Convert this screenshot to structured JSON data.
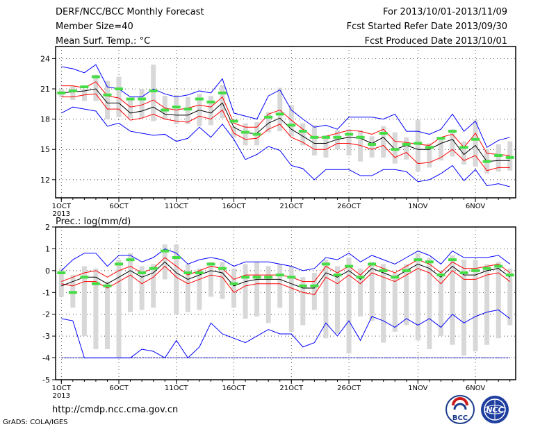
{
  "header": {
    "left": [
      "DERF/NCC/BCC Monthly Forecast",
      "Member Size=40",
      "Mean Surf. Temp.: °C"
    ],
    "right": [
      "For 2013/10/01-2013/11/09",
      "Fcst Started Refer Date 2013/09/30",
      "Fcst Produced Date 2013/10/01"
    ]
  },
  "footer": {
    "url": "http://cmdp.ncc.cma.gov.cn",
    "grads": "GrADS: COLA/IGES"
  },
  "logos": {
    "bcc": "BCC",
    "ncc": "NCC"
  },
  "colors": {
    "envelope": "#0000ff",
    "spread": "#ff0000",
    "mean": "#000000",
    "box": "#d8d8d8",
    "marker": "#44dd44"
  },
  "chart_data": [
    {
      "type": "line",
      "ylabel": "",
      "ylim": [
        10.2,
        25.2
      ],
      "yticks": [
        12,
        15,
        18,
        21,
        24
      ],
      "x_ticks": [
        "1OCT",
        "6OCT",
        "11OCT",
        "16OCT",
        "21OCT",
        "26OCT",
        "1NOV",
        "6NOV"
      ],
      "x_tick_days": [
        1,
        6,
        11,
        16,
        21,
        26,
        32,
        37
      ],
      "x_year_label": "2013",
      "grid": true,
      "days": [
        1,
        2,
        3,
        4,
        5,
        6,
        7,
        8,
        9,
        10,
        11,
        12,
        13,
        14,
        15,
        16,
        17,
        18,
        19,
        20,
        21,
        22,
        23,
        24,
        25,
        26,
        27,
        28,
        29,
        30,
        31,
        32,
        33,
        34,
        35,
        36,
        37,
        38,
        39,
        40
      ],
      "series": [
        {
          "role": "max",
          "values": [
            23.2,
            23.0,
            22.6,
            23.4,
            21.2,
            21.0,
            20.2,
            20.2,
            21.0,
            20.5,
            20.2,
            20.4,
            20.8,
            20.6,
            22.0,
            18.6,
            18.3,
            18.0,
            20.3,
            20.9,
            18.9,
            18.0,
            17.2,
            17.4,
            17.0,
            18.2,
            18.2,
            18.2,
            18.0,
            18.5,
            16.8,
            16.8,
            16.5,
            17.0,
            18.5,
            16.8,
            17.8,
            15.2,
            15.9,
            16.2
          ]
        },
        {
          "role": "upper",
          "values": [
            21.3,
            21.3,
            21.1,
            21.7,
            20.3,
            20.1,
            19.2,
            19.4,
            19.9,
            19.1,
            18.9,
            19.1,
            19.4,
            19.2,
            20.2,
            17.6,
            17.2,
            17.2,
            18.5,
            18.9,
            17.9,
            17.0,
            16.1,
            16.3,
            16.6,
            16.9,
            16.8,
            16.5,
            17.0,
            15.8,
            15.7,
            15.5,
            15.4,
            16.2,
            16.5,
            15.2,
            16.6,
            14.6,
            14.5,
            14.4
          ]
        },
        {
          "role": "mean",
          "values": [
            20.6,
            20.7,
            20.8,
            21.0,
            19.6,
            19.6,
            18.6,
            18.8,
            19.2,
            18.5,
            18.4,
            18.4,
            18.9,
            18.6,
            19.6,
            17.2,
            16.6,
            16.6,
            17.6,
            18.1,
            17.0,
            16.3,
            15.6,
            15.6,
            16.0,
            16.2,
            16.1,
            15.6,
            16.2,
            15.0,
            15.4,
            15.0,
            15.0,
            15.6,
            16.0,
            14.5,
            15.4,
            13.8,
            13.9,
            13.9
          ]
        },
        {
          "role": "lower",
          "values": [
            20.2,
            20.2,
            20.4,
            20.5,
            19.0,
            19.0,
            17.9,
            18.1,
            18.5,
            18.0,
            17.8,
            17.7,
            18.3,
            18.0,
            18.9,
            16.6,
            16.0,
            16.1,
            17.0,
            17.5,
            16.2,
            15.7,
            15.0,
            15.0,
            15.6,
            15.6,
            15.4,
            15.0,
            15.4,
            14.2,
            14.7,
            13.6,
            13.7,
            14.2,
            15.0,
            13.9,
            14.4,
            12.9,
            13.2,
            13.2
          ]
        },
        {
          "role": "min",
          "values": [
            18.6,
            19.2,
            19.0,
            18.8,
            17.3,
            17.6,
            16.8,
            16.6,
            16.4,
            16.5,
            15.8,
            16.1,
            17.2,
            16.2,
            17.5,
            16.0,
            14.0,
            14.5,
            15.3,
            14.9,
            13.4,
            13.1,
            12.0,
            13.0,
            13.0,
            13.0,
            12.4,
            12.4,
            13.0,
            13.0,
            12.8,
            11.8,
            12.0,
            12.6,
            13.4,
            11.9,
            13.0,
            11.4,
            11.6,
            11.3
          ]
        },
        {
          "role": "box_top",
          "values": [
            21.0,
            21.3,
            21.0,
            22.4,
            21.8,
            22.2,
            20.0,
            21.0,
            23.4,
            20.3,
            20.4,
            20.2,
            20.5,
            20.3,
            21.4,
            17.3,
            17.6,
            17.7,
            18.7,
            21.1,
            19.4,
            17.6,
            17.4,
            16.4,
            16.9,
            17.0,
            16.9,
            16.3,
            17.3,
            16.7,
            16.2,
            17.9,
            15.6,
            16.1,
            17.0,
            15.8,
            17.9,
            15.0,
            15.5,
            15.8
          ]
        },
        {
          "role": "box_bottom",
          "values": [
            20.2,
            19.9,
            19.8,
            19.8,
            18.0,
            18.2,
            18.1,
            18.1,
            17.8,
            18.0,
            17.5,
            17.5,
            17.3,
            17.4,
            18.1,
            16.2,
            15.4,
            15.4,
            16.7,
            16.8,
            16.3,
            15.4,
            14.4,
            14.2,
            15.0,
            14.4,
            13.8,
            14.2,
            14.2,
            13.6,
            14.0,
            12.8,
            13.2,
            13.9,
            14.3,
            13.5,
            13.3,
            12.6,
            12.8,
            12.9
          ]
        },
        {
          "role": "marker",
          "values": [
            20.6,
            20.8,
            21.2,
            22.2,
            20.4,
            21.0,
            20.0,
            20.0,
            20.8,
            18.9,
            19.2,
            19.0,
            20.0,
            19.7,
            20.6,
            17.8,
            16.7,
            16.5,
            18.2,
            18.5,
            17.4,
            16.8,
            16.2,
            16.2,
            16.2,
            16.5,
            16.2,
            15.5,
            16.6,
            15.0,
            15.5,
            15.6,
            15.2,
            16.1,
            16.8,
            15.2,
            16.0,
            13.8,
            14.4,
            14.2
          ]
        }
      ]
    },
    {
      "type": "line",
      "ylabel": "Prec.: log(mm/d)",
      "ylim": [
        -5,
        2
      ],
      "yticks": [
        -5,
        -4,
        -3,
        -2,
        -1,
        0,
        1,
        2
      ],
      "x_ticks": [
        "1OCT",
        "6OCT",
        "11OCT",
        "16OCT",
        "21OCT",
        "26OCT",
        "1NOV",
        "6NOV"
      ],
      "x_tick_days": [
        1,
        6,
        11,
        16,
        21,
        26,
        32,
        37
      ],
      "x_year_label": "2013",
      "grid": true,
      "days": [
        1,
        2,
        3,
        4,
        5,
        6,
        7,
        8,
        9,
        10,
        11,
        12,
        13,
        14,
        15,
        16,
        17,
        18,
        19,
        20,
        21,
        22,
        23,
        24,
        25,
        26,
        27,
        28,
        29,
        30,
        31,
        32,
        33,
        34,
        35,
        36,
        37,
        38,
        39,
        40
      ],
      "series": [
        {
          "role": "max",
          "values": [
            0.0,
            0.5,
            0.8,
            0.8,
            0.2,
            0.7,
            0.7,
            0.4,
            0.6,
            1.0,
            0.8,
            0.3,
            0.5,
            0.6,
            0.5,
            0.2,
            0.4,
            0.4,
            0.4,
            0.3,
            0.2,
            0.0,
            0.1,
            0.6,
            0.5,
            0.8,
            0.4,
            0.7,
            0.5,
            0.3,
            0.6,
            0.9,
            0.7,
            0.3,
            0.9,
            0.6,
            0.6,
            0.6,
            0.7,
            0.3
          ]
        },
        {
          "role": "upper",
          "values": [
            -0.5,
            -0.3,
            -0.1,
            0.0,
            -0.3,
            0.0,
            0.2,
            -0.1,
            0.1,
            0.6,
            0.2,
            -0.2,
            0.0,
            0.2,
            0.1,
            -0.4,
            -0.2,
            -0.2,
            -0.2,
            -0.2,
            -0.3,
            -0.5,
            -0.5,
            0.2,
            -0.1,
            0.2,
            -0.2,
            0.3,
            0.1,
            -0.1,
            0.2,
            0.5,
            0.3,
            -0.1,
            0.4,
            0.1,
            0.1,
            0.2,
            0.3,
            -0.1
          ]
        },
        {
          "role": "mean",
          "values": [
            -0.7,
            -0.5,
            -0.3,
            -0.3,
            -0.6,
            -0.3,
            0.0,
            -0.3,
            -0.1,
            0.4,
            -0.1,
            -0.4,
            -0.2,
            0.0,
            -0.1,
            -0.7,
            -0.5,
            -0.4,
            -0.4,
            -0.4,
            -0.6,
            -0.8,
            -0.8,
            -0.1,
            -0.3,
            0.0,
            -0.4,
            0.1,
            -0.1,
            -0.3,
            0.0,
            0.3,
            0.1,
            -0.3,
            0.2,
            -0.2,
            -0.2,
            0.0,
            0.1,
            -0.3
          ]
        },
        {
          "role": "lower",
          "values": [
            -0.6,
            -0.7,
            -0.5,
            -0.5,
            -0.8,
            -0.5,
            -0.2,
            -0.6,
            -0.3,
            0.2,
            -0.3,
            -0.6,
            -0.4,
            -0.2,
            -0.3,
            -1.0,
            -0.7,
            -0.6,
            -0.6,
            -0.6,
            -0.8,
            -1.0,
            -1.1,
            -0.3,
            -0.6,
            -0.2,
            -0.6,
            -0.1,
            -0.3,
            -0.5,
            -0.2,
            0.1,
            -0.1,
            -0.6,
            0.0,
            -0.4,
            -0.4,
            -0.2,
            -0.1,
            -0.5
          ]
        },
        {
          "role": "min",
          "values": [
            -2.2,
            -2.3,
            -4.0,
            -4.0,
            -4.0,
            -4.0,
            -4.0,
            -3.6,
            -3.7,
            -4.0,
            -3.2,
            -4.0,
            -3.5,
            -2.4,
            -2.9,
            -3.1,
            -3.3,
            -3.0,
            -2.7,
            -2.9,
            -2.9,
            -3.5,
            -3.3,
            -2.4,
            -3.0,
            -2.3,
            -3.2,
            -2.1,
            -2.3,
            -2.6,
            -2.2,
            -2.5,
            -2.2,
            -2.6,
            -2.0,
            -2.4,
            -2.1,
            -1.9,
            -1.8,
            -2.2
          ]
        },
        {
          "role": "box_top",
          "values": [
            0.1,
            -0.2,
            0.2,
            0.1,
            -0.5,
            0.5,
            0.8,
            0.2,
            0.3,
            1.2,
            1.2,
            0.3,
            0.1,
            0.4,
            0.4,
            0.1,
            0.3,
            0.4,
            0.2,
            0.3,
            0.2,
            -0.3,
            -0.1,
            0.5,
            0.2,
            0.6,
            0.1,
            0.4,
            0.3,
            -0.1,
            0.3,
            0.8,
            0.6,
            0.0,
            0.7,
            0.5,
            0.5,
            0.3,
            0.4,
            0.1
          ]
        },
        {
          "role": "box_bottom",
          "values": [
            -1.2,
            -1.7,
            -3.0,
            -3.6,
            -3.6,
            -4.0,
            -1.9,
            -1.8,
            -1.7,
            -0.4,
            -2.0,
            -1.9,
            -1.8,
            -1.2,
            -1.3,
            -1.7,
            -2.2,
            -2.1,
            -2.4,
            -1.7,
            -2.8,
            -2.5,
            -1.8,
            -3.1,
            -2.9,
            -3.8,
            -2.1,
            -2.3,
            -3.3,
            -2.8,
            -2.5,
            -3.2,
            -3.6,
            -3.0,
            -3.4,
            -3.9,
            -3.7,
            -3.4,
            -3.1,
            -2.5
          ]
        },
        {
          "role": "marker",
          "values": [
            -0.1,
            -1.0,
            -0.3,
            -0.6,
            -0.7,
            0.3,
            0.5,
            -0.1,
            0.1,
            0.9,
            0.6,
            -0.1,
            -0.1,
            0.3,
            0.1,
            -0.6,
            -0.3,
            -0.3,
            -0.3,
            -0.2,
            -0.3,
            -0.7,
            -0.7,
            0.3,
            -0.2,
            0.2,
            -0.3,
            0.3,
            0.0,
            -0.3,
            0.0,
            0.5,
            0.4,
            -0.2,
            0.5,
            -0.1,
            0.0,
            0.1,
            0.2,
            -0.2
          ]
        },
        {
          "role": "floor",
          "values": [
            -4.0,
            -4.0,
            -4.0,
            -4.0,
            -4.0,
            -4.0,
            -4.0,
            -4.0,
            -4.0,
            -4.0,
            -4.0,
            -4.0,
            -4.0,
            -4.0,
            -4.0,
            -4.0,
            -4.0,
            -4.0,
            -4.0,
            -4.0,
            -4.0,
            -4.0,
            -4.0,
            -4.0,
            -4.0,
            -4.0,
            -4.0,
            -4.0,
            -4.0,
            -4.0,
            -4.0,
            -4.0,
            -4.0,
            -4.0,
            -4.0,
            -4.0,
            -4.0,
            -4.0,
            -4.0,
            -4.0
          ]
        }
      ]
    }
  ]
}
